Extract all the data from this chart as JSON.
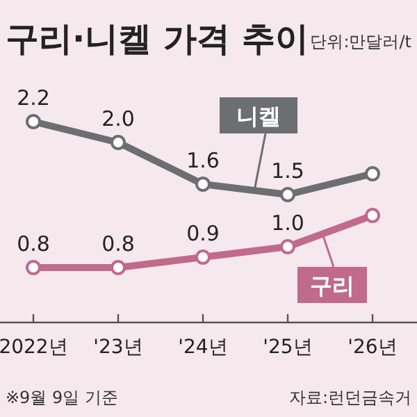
{
  "chart_data": {
    "type": "line",
    "title": "구리·니켈 가격 추이",
    "subtitle": "단위:만달러/t",
    "categories": [
      "2022년",
      "'23년",
      "'24년",
      "'25년",
      "'26년"
    ],
    "series": [
      {
        "name": "니켈",
        "color": "#6d6e70",
        "values": [
          2.2,
          2.0,
          1.6,
          1.5,
          1.7
        ],
        "value_labels": [
          "2.2",
          "2.0",
          "1.6",
          "1.5",
          null
        ]
      },
      {
        "name": "구리",
        "color": "#c06a8c",
        "values": [
          0.8,
          0.8,
          0.9,
          1.0,
          1.3
        ],
        "value_labels": [
          "0.8",
          "0.8",
          "0.9",
          "1.0",
          null
        ]
      }
    ],
    "marker": "circle",
    "annotations": [
      "※9월 9일 기준",
      "자료:런던금속거"
    ]
  }
}
